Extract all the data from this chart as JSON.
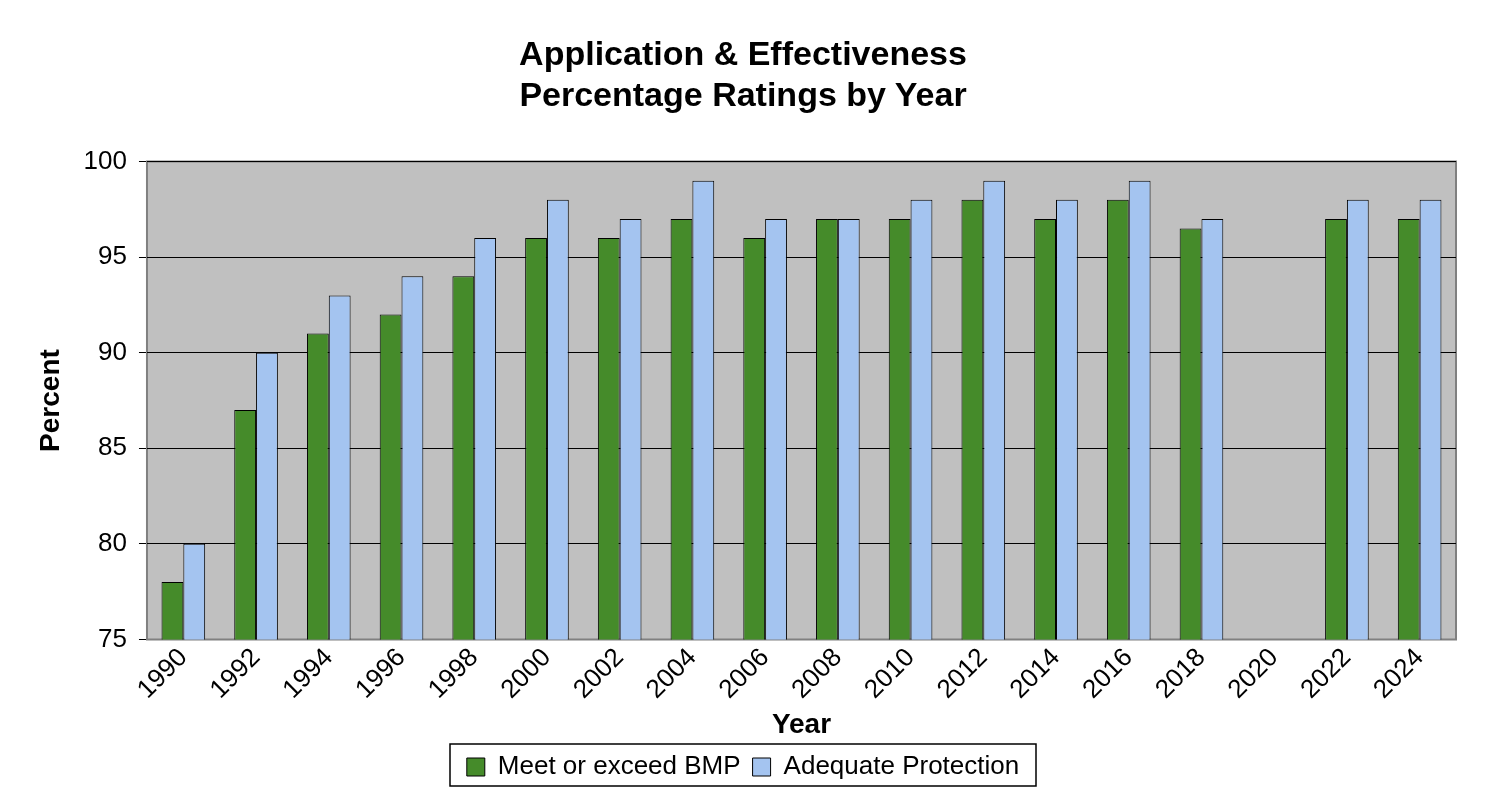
{
  "chart_data": {
    "type": "bar",
    "title": [
      "Application & Effectiveness",
      "Percentage Ratings by Year"
    ],
    "xlabel": "Year",
    "ylabel": "Percent",
    "categories": [
      "1990",
      "1992",
      "1994",
      "1996",
      "1998",
      "2000",
      "2002",
      "2004",
      "2006",
      "2008",
      "2010",
      "2012",
      "2014",
      "2016",
      "2018",
      "2020",
      "2022",
      "2024"
    ],
    "series": [
      {
        "name": "Meet or exceed BMP",
        "color": "#458b2a",
        "values": [
          78,
          87,
          91,
          92,
          94,
          96,
          96,
          97,
          96,
          97,
          97,
          98,
          97,
          98,
          96.5,
          null,
          97,
          97
        ]
      },
      {
        "name": "Adequate Protection",
        "color": "#a4c4f0",
        "values": [
          80,
          90,
          93,
          94,
          96,
          98,
          97,
          99,
          97,
          97,
          98,
          99,
          98,
          99,
          97,
          null,
          98,
          98
        ]
      }
    ],
    "ylim": [
      75,
      100
    ],
    "yticks": [
      75,
      80,
      85,
      90,
      95,
      100
    ],
    "grid": "y",
    "legend": "bottom"
  }
}
